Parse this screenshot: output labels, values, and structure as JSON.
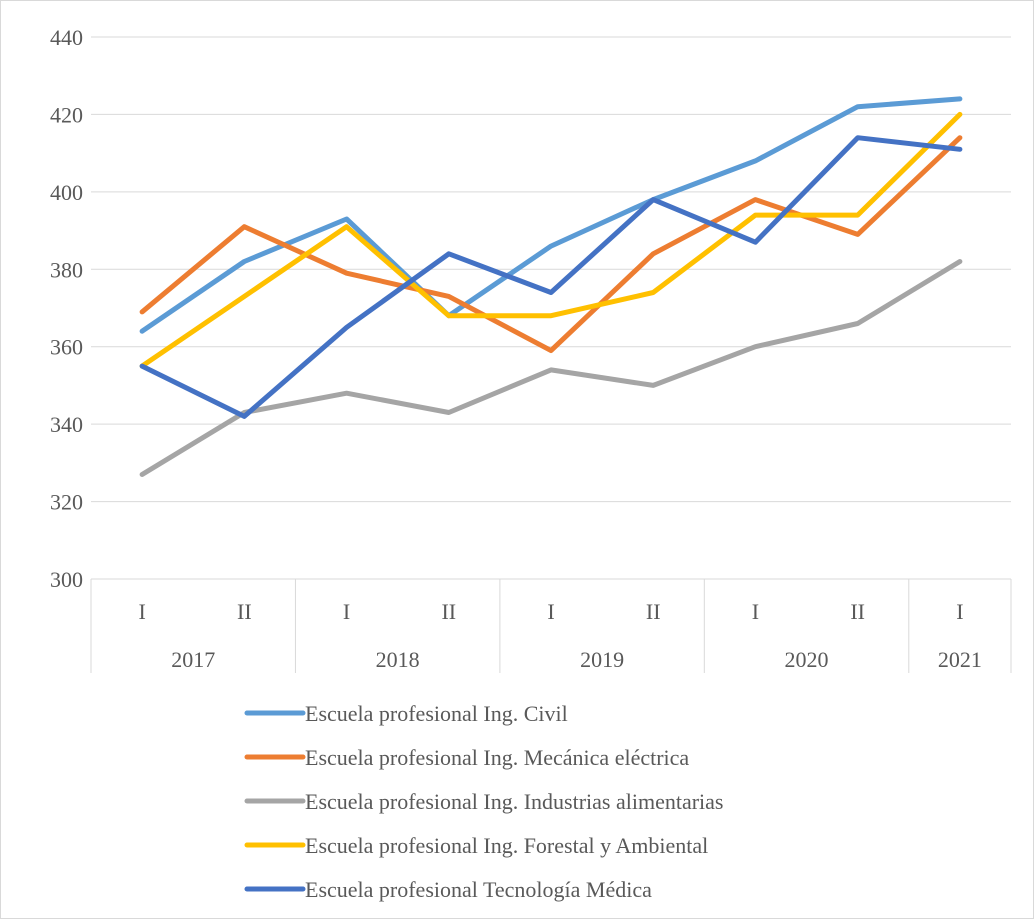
{
  "chart_data": {
    "type": "line",
    "title": "",
    "xlabel": "",
    "ylabel": "",
    "ylim": [
      300,
      440
    ],
    "y_ticks": [
      "300",
      "320",
      "340",
      "360",
      "380",
      "400",
      "420",
      "440"
    ],
    "grid": true,
    "legend_position": "bottom",
    "categories": [
      {
        "year": "2017",
        "term": "I"
      },
      {
        "year": "2017",
        "term": "II"
      },
      {
        "year": "2018",
        "term": "I"
      },
      {
        "year": "2018",
        "term": "II"
      },
      {
        "year": "2019",
        "term": "I"
      },
      {
        "year": "2019",
        "term": "II"
      },
      {
        "year": "2020",
        "term": "I"
      },
      {
        "year": "2020",
        "term": "II"
      },
      {
        "year": "2021",
        "term": "I"
      }
    ],
    "year_groups": [
      {
        "label": "2017",
        "span": 2
      },
      {
        "label": "2018",
        "span": 2
      },
      {
        "label": "2019",
        "span": 2
      },
      {
        "label": "2020",
        "span": 2
      },
      {
        "label": "2021",
        "span": 1
      }
    ],
    "series": [
      {
        "name": "Escuela profesional Ing. Civil",
        "color": "#5b9bd5",
        "values": [
          364,
          382,
          393,
          368,
          386,
          398,
          408,
          422,
          424
        ]
      },
      {
        "name": "Escuela profesional Ing. Mecánica eléctrica",
        "color": "#ed7d31",
        "values": [
          369,
          391,
          379,
          373,
          359,
          384,
          398,
          389,
          414
        ]
      },
      {
        "name": "Escuela profesional Ing. Industrias alimentarias",
        "color": "#a5a5a5",
        "values": [
          327,
          343,
          348,
          343,
          354,
          350,
          360,
          366,
          382
        ]
      },
      {
        "name": "Escuela profesional Ing. Forestal y Ambiental",
        "color": "#ffc000",
        "values": [
          355,
          373,
          391,
          368,
          368,
          374,
          394,
          394,
          420
        ]
      },
      {
        "name": "Escuela profesional Tecnología Médica",
        "color": "#4472c4",
        "values": [
          355,
          342,
          365,
          384,
          374,
          398,
          387,
          414,
          411
        ]
      }
    ]
  }
}
